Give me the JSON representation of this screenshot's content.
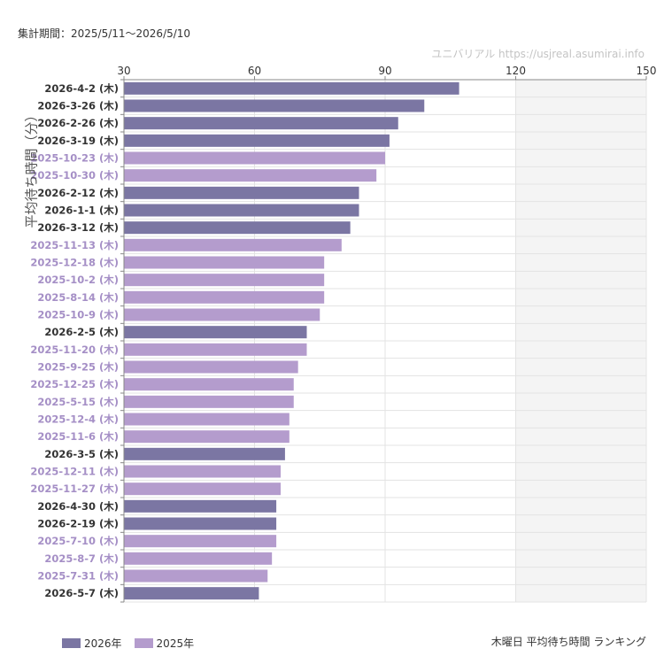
{
  "header": {
    "period": "集計期間：2025/5/11〜2026/5/10",
    "watermark": "ユニバリアル  https://usjreal.asumirai.info"
  },
  "footer": {
    "title": "木曜日 平均待ち時間 ランキング"
  },
  "colors": {
    "y2026": "#7b76a3",
    "y2025": "#b49ccd",
    "shade": "#f4f4f4",
    "grid": "#e3e3e3"
  },
  "chart_data": {
    "type": "bar",
    "orientation": "horizontal",
    "ylabel": "平均待ち時間（分）",
    "xlim": [
      30,
      150
    ],
    "xticks": [
      30,
      60,
      90,
      120,
      150
    ],
    "shaded_range": [
      120,
      150
    ],
    "legend": [
      {
        "key": "2026",
        "label": "2026年"
      },
      {
        "key": "2025",
        "label": "2025年"
      }
    ],
    "legend_position": "bottom-left",
    "categories": [
      "2026-4-2 (木)",
      "2026-3-26 (木)",
      "2026-2-26 (木)",
      "2026-3-19 (木)",
      "2025-10-23 (木)",
      "2025-10-30 (木)",
      "2026-2-12 (木)",
      "2026-1-1 (木)",
      "2026-3-12 (木)",
      "2025-11-13 (木)",
      "2025-12-18 (木)",
      "2025-10-2 (木)",
      "2025-8-14 (木)",
      "2025-10-9 (木)",
      "2026-2-5 (木)",
      "2025-11-20 (木)",
      "2025-9-25 (木)",
      "2025-12-25 (木)",
      "2025-5-15 (木)",
      "2025-12-4 (木)",
      "2025-11-6 (木)",
      "2026-3-5 (木)",
      "2025-12-11 (木)",
      "2025-11-27 (木)",
      "2026-4-30 (木)",
      "2026-2-19 (木)",
      "2025-7-10 (木)",
      "2025-8-7 (木)",
      "2025-7-31 (木)",
      "2026-5-7 (木)"
    ],
    "values": [
      107,
      99,
      93,
      91,
      90,
      88,
      84,
      84,
      82,
      80,
      76,
      76,
      76,
      75,
      72,
      72,
      70,
      69,
      69,
      68,
      68,
      67,
      66,
      66,
      65,
      65,
      65,
      64,
      63,
      61
    ],
    "series_keys": [
      "2026",
      "2026",
      "2026",
      "2026",
      "2025",
      "2025",
      "2026",
      "2026",
      "2026",
      "2025",
      "2025",
      "2025",
      "2025",
      "2025",
      "2026",
      "2025",
      "2025",
      "2025",
      "2025",
      "2025",
      "2025",
      "2026",
      "2025",
      "2025",
      "2026",
      "2026",
      "2025",
      "2025",
      "2025",
      "2026"
    ]
  }
}
